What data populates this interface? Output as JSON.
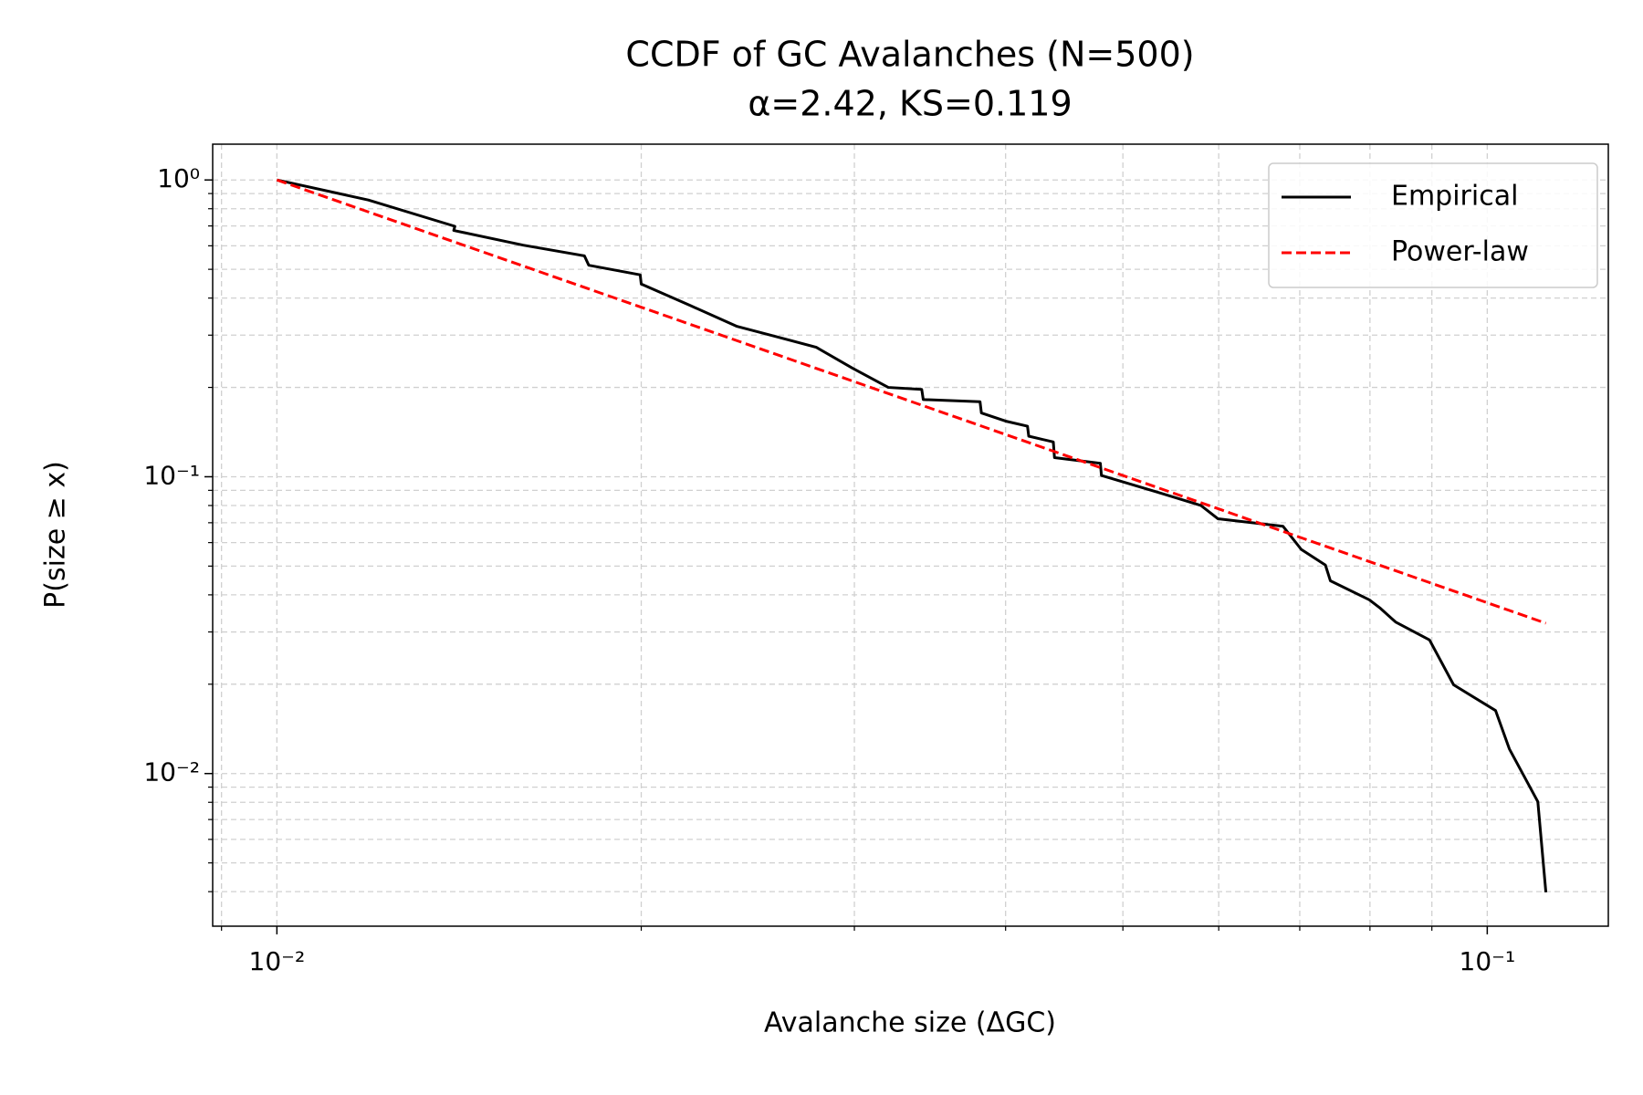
{
  "chart_data": {
    "type": "line",
    "title": "CCDF of GC Avalanches (N=500)",
    "subtitle": "α=2.42, KS=0.119",
    "xlabel": "Avalanche size (ΔGC)",
    "ylabel": "P(size ≥ x)",
    "xscale": "log",
    "yscale": "log",
    "xlim": [
      0.00885,
      0.1259
    ],
    "ylim": [
      0.00306,
      1.32
    ],
    "xticks": [
      {
        "value": 0.01,
        "label": "10⁻²"
      },
      {
        "value": 0.1,
        "label": "10⁻¹"
      }
    ],
    "yticks": [
      {
        "value": 0.01,
        "label": "10⁻²"
      },
      {
        "value": 0.1,
        "label": "10⁻¹"
      },
      {
        "value": 1,
        "label": "10⁰"
      }
    ],
    "xminorticks": [
      0.009,
      0.02,
      0.03,
      0.04,
      0.05,
      0.06,
      0.07,
      0.08,
      0.09
    ],
    "yminorticks": [
      0.004,
      0.005,
      0.006,
      0.007,
      0.008,
      0.009,
      0.02,
      0.03,
      0.04,
      0.05,
      0.06,
      0.07,
      0.08,
      0.09,
      0.2,
      0.3,
      0.4,
      0.5,
      0.6,
      0.7,
      0.8,
      0.9
    ],
    "grid": true,
    "legend": "upper right",
    "series": [
      {
        "name": "Empirical",
        "color": "#000000",
        "style": "solid",
        "x": [
          0.01,
          0.0119,
          0.01403,
          0.014,
          0.01598,
          0.01795,
          0.0181,
          0.01996,
          0.02,
          0.02194,
          0.024,
          0.0259,
          0.0279,
          0.0299,
          0.032,
          0.0341,
          0.0342,
          0.0381,
          0.0382,
          0.04,
          0.0417,
          0.0418,
          0.0438,
          0.0439,
          0.0479,
          0.048,
          0.0535,
          0.058,
          0.0599,
          0.0678,
          0.0702,
          0.0735,
          0.0742,
          0.0799,
          0.0815,
          0.084,
          0.0896,
          0.0938,
          0.1016,
          0.1043,
          0.1101,
          0.1118
        ],
        "values": [
          1.0,
          0.856,
          0.698,
          0.676,
          0.603,
          0.555,
          0.516,
          0.479,
          0.446,
          0.378,
          0.321,
          0.296,
          0.273,
          0.232,
          0.2,
          0.197,
          0.182,
          0.179,
          0.164,
          0.154,
          0.148,
          0.137,
          0.131,
          0.116,
          0.111,
          0.101,
          0.0885,
          0.08,
          0.0722,
          0.0681,
          0.0569,
          0.0504,
          0.0446,
          0.0385,
          0.0362,
          0.0324,
          0.0282,
          0.0199,
          0.0163,
          0.0121,
          0.00804,
          0.00398
        ]
      },
      {
        "name": "Power-law",
        "color": "#ff0000",
        "style": "dashed",
        "x": [
          0.01,
          0.1118
        ],
        "values": [
          1.0,
          0.0321
        ]
      }
    ]
  }
}
